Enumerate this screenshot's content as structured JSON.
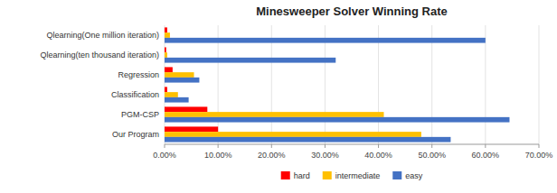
{
  "chart_data": {
    "type": "bar",
    "orientation": "horizontal",
    "title": "Minesweeper Solver Winning Rate",
    "categories": [
      "Qlearning(One million iteration)",
      "Qlearning(ten thousand iteration)",
      "Regression",
      "Classification",
      "PGM-CSP",
      "Our Program"
    ],
    "series": [
      {
        "name": "hard",
        "color": "#FF0000",
        "values": [
          0.005,
          0.003,
          0.015,
          0.005,
          0.08,
          0.1
        ]
      },
      {
        "name": "intermediate",
        "color": "#FFC000",
        "values": [
          0.01,
          0.005,
          0.055,
          0.025,
          0.41,
          0.48
        ]
      },
      {
        "name": "easy",
        "color": "#4472C4",
        "values": [
          0.6,
          0.32,
          0.065,
          0.045,
          0.645,
          0.535
        ]
      }
    ],
    "xlim": [
      0,
      0.7
    ],
    "xticks": [
      {
        "value": 0.0,
        "label": "0.00%"
      },
      {
        "value": 0.1,
        "label": "10.00%"
      },
      {
        "value": 0.2,
        "label": "20.00%"
      },
      {
        "value": 0.3,
        "label": "30.00%"
      },
      {
        "value": 0.4,
        "label": "40.00%"
      },
      {
        "value": 0.5,
        "label": "50.00%"
      },
      {
        "value": 0.6,
        "label": "60.00%"
      },
      {
        "value": 0.7,
        "label": "70.00%"
      }
    ],
    "grid": true,
    "legend": "bottom"
  }
}
